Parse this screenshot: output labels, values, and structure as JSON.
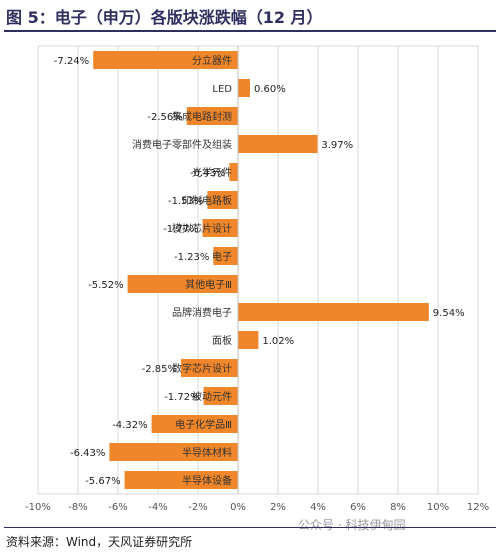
{
  "title": "图 5：电子（申万）各版块涨跌幅（12 月）",
  "source": "资料来源：Wind，天风证券研究所",
  "watermark": "公众号 · 科技伊甸园",
  "colors": {
    "bar": "#f0862a",
    "title": "#2f2f5f"
  },
  "chart_data": {
    "type": "bar",
    "orientation": "horizontal",
    "categories": [
      "分立器件",
      "LED",
      "集成电路封测",
      "消费电子零部件及组装",
      "光学元件",
      "印制电路板",
      "模拟芯片设计",
      "电子",
      "其他电子Ⅲ",
      "品牌消费电子",
      "面板",
      "数字芯片设计",
      "被动元件",
      "电子化学品Ⅲ",
      "半导体材料",
      "半导体设备"
    ],
    "values": [
      -7.24,
      0.6,
      -2.56,
      3.97,
      -0.43,
      -1.53,
      -1.77,
      -1.23,
      -5.52,
      9.54,
      1.02,
      -2.85,
      -1.72,
      -4.32,
      -6.43,
      -5.67
    ],
    "value_labels": [
      "-7.24%",
      "0.60%",
      "-2.56%",
      "3.97%",
      "-0.43%",
      "-1.53%",
      "-1.77%",
      "-1.23%",
      "-5.52%",
      "9.54%",
      "1.02%",
      "-2.85%",
      "-1.72%",
      "-4.32%",
      "-6.43%",
      "-5.67%"
    ],
    "xlim": [
      -10,
      12
    ],
    "xticks": [
      -10,
      -8,
      -6,
      -4,
      -2,
      0,
      2,
      4,
      6,
      8,
      10,
      12
    ],
    "xtick_labels": [
      "-10%",
      "-8%",
      "-6%",
      "-4%",
      "-2%",
      "0%",
      "2%",
      "4%",
      "6%",
      "8%",
      "10%",
      "12%"
    ],
    "grid": true,
    "legend": "none"
  }
}
